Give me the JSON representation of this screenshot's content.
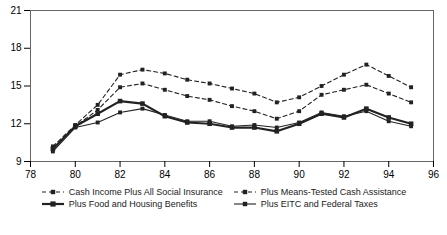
{
  "chart_data": {
    "type": "line",
    "x": [
      79,
      80,
      81,
      82,
      83,
      84,
      85,
      86,
      87,
      88,
      89,
      90,
      91,
      92,
      93,
      94,
      95
    ],
    "series": [
      {
        "name": "Cash Income Plus All Social Insurance",
        "color": "#222222",
        "line_style": "dashed",
        "marker": "square",
        "values": [
          10.2,
          11.9,
          13.5,
          15.9,
          16.3,
          16.0,
          15.5,
          15.2,
          14.8,
          14.4,
          13.7,
          14.1,
          15.0,
          15.9,
          16.7,
          15.8,
          14.9
        ]
      },
      {
        "name": "Plus Means-Tested Cash Assistance",
        "color": "#222222",
        "line_style": "dashed",
        "marker": "square",
        "values": [
          10.1,
          11.8,
          13.1,
          14.9,
          15.2,
          14.7,
          14.2,
          13.9,
          13.4,
          13.0,
          12.4,
          13.0,
          14.3,
          14.7,
          15.1,
          14.4,
          13.7
        ]
      },
      {
        "name": "Plus Food and Housing Benefits",
        "color": "#222222",
        "line_style": "thick",
        "marker": "square",
        "values": [
          10.0,
          11.8,
          12.8,
          13.8,
          13.6,
          12.6,
          12.1,
          12.0,
          11.7,
          11.7,
          11.4,
          12.0,
          12.8,
          12.5,
          13.2,
          12.5,
          12.0
        ]
      },
      {
        "name": "Plus EITC and Federal Taxes",
        "color": "#222222",
        "line_style": "solid",
        "marker": "square",
        "values": [
          9.8,
          11.7,
          12.1,
          12.9,
          13.2,
          12.7,
          12.2,
          12.2,
          11.8,
          11.9,
          11.7,
          12.1,
          12.9,
          12.6,
          13.0,
          12.2,
          11.8
        ]
      }
    ],
    "xlim": [
      78,
      96
    ],
    "xticks": [
      78,
      80,
      82,
      84,
      86,
      88,
      90,
      92,
      94,
      96
    ],
    "ylim": [
      9,
      21
    ],
    "yticks": [
      9,
      12,
      15,
      18,
      21
    ],
    "grid": false,
    "legend": "bottom"
  }
}
